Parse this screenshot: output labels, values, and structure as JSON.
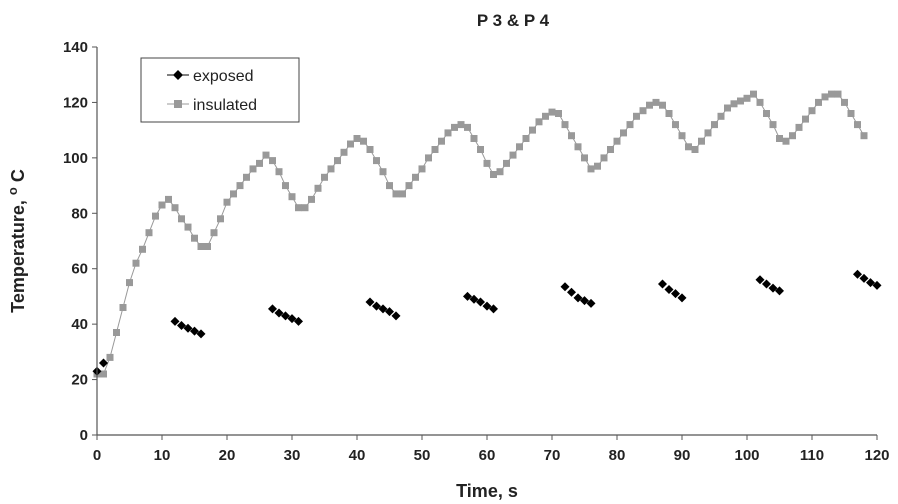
{
  "chart_data": {
    "type": "scatter",
    "title": "P 3 & P 4",
    "xlabel": "Time, s",
    "ylabel_main": "Temperature, ",
    "ylabel_sup": "o",
    "ylabel_unit": " C",
    "xlim": [
      0,
      120
    ],
    "ylim": [
      0,
      140
    ],
    "xticks": [
      0,
      10,
      20,
      30,
      40,
      50,
      60,
      70,
      80,
      90,
      100,
      110,
      120
    ],
    "yticks": [
      0,
      20,
      40,
      60,
      80,
      100,
      120,
      140
    ],
    "grid": false,
    "legend_position": "top-left",
    "series": [
      {
        "name": "exposed",
        "color": "#000000",
        "marker": "diamond",
        "points": [
          [
            0,
            23
          ],
          [
            1,
            26
          ],
          [
            12,
            41
          ],
          [
            13,
            39.5
          ],
          [
            14,
            38.5
          ],
          [
            15,
            37.5
          ],
          [
            16,
            36.5
          ],
          [
            27,
            45.5
          ],
          [
            28,
            44
          ],
          [
            29,
            43
          ],
          [
            30,
            42
          ],
          [
            31,
            41
          ],
          [
            42,
            48
          ],
          [
            43,
            46.5
          ],
          [
            44,
            45.5
          ],
          [
            45,
            44.5
          ],
          [
            46,
            43
          ],
          [
            57,
            50
          ],
          [
            58,
            49
          ],
          [
            59,
            48
          ],
          [
            60,
            46.5
          ],
          [
            61,
            45.5
          ],
          [
            72,
            53.5
          ],
          [
            73,
            51.5
          ],
          [
            74,
            49.5
          ],
          [
            75,
            48.5
          ],
          [
            76,
            47.5
          ],
          [
            87,
            54.5
          ],
          [
            88,
            52.5
          ],
          [
            89,
            51
          ],
          [
            90,
            49.5
          ],
          [
            102,
            56
          ],
          [
            103,
            54.5
          ],
          [
            104,
            53
          ],
          [
            105,
            52
          ],
          [
            117,
            58
          ],
          [
            118,
            56.5
          ],
          [
            119,
            55
          ],
          [
            120,
            54
          ]
        ]
      },
      {
        "name": "insulated",
        "color": "#999999",
        "marker": "square",
        "points": [
          [
            0,
            22
          ],
          [
            1,
            22
          ],
          [
            2,
            28
          ],
          [
            3,
            37
          ],
          [
            4,
            46
          ],
          [
            5,
            55
          ],
          [
            6,
            62
          ],
          [
            7,
            67
          ],
          [
            8,
            73
          ],
          [
            9,
            79
          ],
          [
            10,
            83
          ],
          [
            11,
            85
          ],
          [
            12,
            82
          ],
          [
            13,
            78
          ],
          [
            14,
            75
          ],
          [
            15,
            71
          ],
          [
            16,
            68
          ],
          [
            17,
            68
          ],
          [
            18,
            73
          ],
          [
            19,
            78
          ],
          [
            20,
            84
          ],
          [
            21,
            87
          ],
          [
            22,
            90
          ],
          [
            23,
            93
          ],
          [
            24,
            96
          ],
          [
            25,
            98
          ],
          [
            26,
            101
          ],
          [
            27,
            99
          ],
          [
            28,
            95
          ],
          [
            29,
            90
          ],
          [
            30,
            86
          ],
          [
            31,
            82
          ],
          [
            32,
            82
          ],
          [
            33,
            85
          ],
          [
            34,
            89
          ],
          [
            35,
            93
          ],
          [
            36,
            96
          ],
          [
            37,
            99
          ],
          [
            38,
            102
          ],
          [
            39,
            105
          ],
          [
            40,
            107
          ],
          [
            41,
            106
          ],
          [
            42,
            103
          ],
          [
            43,
            99
          ],
          [
            44,
            95
          ],
          [
            45,
            90
          ],
          [
            46,
            87
          ],
          [
            47,
            87
          ],
          [
            48,
            90
          ],
          [
            49,
            93
          ],
          [
            50,
            96
          ],
          [
            51,
            100
          ],
          [
            52,
            103
          ],
          [
            53,
            106
          ],
          [
            54,
            109
          ],
          [
            55,
            111
          ],
          [
            56,
            112
          ],
          [
            57,
            111
          ],
          [
            58,
            107
          ],
          [
            59,
            103
          ],
          [
            60,
            98
          ],
          [
            61,
            94
          ],
          [
            62,
            95
          ],
          [
            63,
            98
          ],
          [
            64,
            101
          ],
          [
            65,
            104
          ],
          [
            66,
            107
          ],
          [
            67,
            110
          ],
          [
            68,
            113
          ],
          [
            69,
            115
          ],
          [
            70,
            116.5
          ],
          [
            71,
            116
          ],
          [
            72,
            112
          ],
          [
            73,
            108
          ],
          [
            74,
            104
          ],
          [
            75,
            100
          ],
          [
            76,
            96
          ],
          [
            77,
            97
          ],
          [
            78,
            100
          ],
          [
            79,
            103
          ],
          [
            80,
            106
          ],
          [
            81,
            109
          ],
          [
            82,
            112
          ],
          [
            83,
            115
          ],
          [
            84,
            117
          ],
          [
            85,
            119
          ],
          [
            86,
            120
          ],
          [
            87,
            119
          ],
          [
            88,
            116
          ],
          [
            89,
            112
          ],
          [
            90,
            108
          ],
          [
            91,
            104
          ],
          [
            92,
            103
          ],
          [
            93,
            106
          ],
          [
            94,
            109
          ],
          [
            95,
            112
          ],
          [
            96,
            115
          ],
          [
            97,
            118
          ],
          [
            98,
            119.5
          ],
          [
            99,
            120.5
          ],
          [
            100,
            121.5
          ],
          [
            101,
            123
          ],
          [
            102,
            120
          ],
          [
            103,
            116
          ],
          [
            104,
            112
          ],
          [
            105,
            107
          ],
          [
            106,
            106
          ],
          [
            107,
            108
          ],
          [
            108,
            111
          ],
          [
            109,
            114
          ],
          [
            110,
            117
          ],
          [
            111,
            120
          ],
          [
            112,
            122
          ],
          [
            113,
            123
          ],
          [
            114,
            123
          ],
          [
            115,
            120
          ],
          [
            116,
            116
          ],
          [
            117,
            112
          ],
          [
            118,
            108
          ]
        ]
      }
    ]
  }
}
